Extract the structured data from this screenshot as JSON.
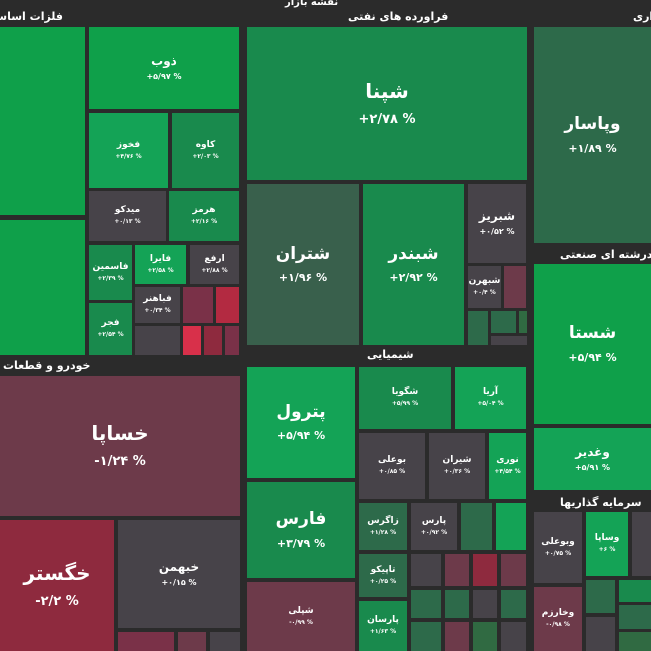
{
  "map_title": "نقشه بازار",
  "sectors": {
    "metals": "فلزات اساسی",
    "refinery": "فراورده های نفتی",
    "partial_right": "اری",
    "multi_industry": "چندرشته ای صنعتی",
    "auto": "خودرو و قطعات",
    "chemical": "شیمیایی",
    "investment": "سرمایه گذاریها"
  },
  "tiles": {
    "zob": {
      "name": "ذوب",
      "pct": "+۵/۹۷ %"
    },
    "fakhoz": {
      "name": "فخوز",
      "pct": "+۴/۷۶ %"
    },
    "kave": {
      "name": "کاوه",
      "pct": "+۲/۰۳ %"
    },
    "midko": {
      "name": "میدکو",
      "pct": "+۰/۱۳ %"
    },
    "hormoz": {
      "name": "هرمز",
      "pct": "+۲/۱۶ %"
    },
    "fasmin": {
      "name": "فاسمین",
      "pct": "+۲/۳۹ %"
    },
    "faira": {
      "name": "فایرا",
      "pct": "+۲/۵۸ %"
    },
    "arfe": {
      "name": "ارفع",
      "pct": "+۲/۸۸ %"
    },
    "fabahonar": {
      "name": "فباهنر",
      "pct": "+۰/۳۴ %"
    },
    "fajr": {
      "name": "فجر",
      "pct": "+۲/۵۴ %"
    },
    "shepna": {
      "name": "شپنا",
      "pct": "+۲/۷۸ %"
    },
    "shetran": {
      "name": "شتران",
      "pct": "+۱/۹۶ %"
    },
    "shebandar": {
      "name": "شبندر",
      "pct": "+۲/۹۲ %"
    },
    "shebriz": {
      "name": "شبریز",
      "pct": "+۰/۵۲ %"
    },
    "shebahran": {
      "name": "شبهرن",
      "pct": "+۰/۴ %"
    },
    "vapasar": {
      "name": "وپاسار",
      "pct": "+۱/۸۹ %"
    },
    "shasta": {
      "name": "شستا",
      "pct": "+۵/۹۴ %"
    },
    "vaghadir": {
      "name": "وغدیر",
      "pct": "+۵/۹۱ %"
    },
    "khsapa": {
      "name": "خساپا",
      "pct": "-۱/۲۴ %"
    },
    "khegostar": {
      "name": "خگستر",
      "pct": "-۲/۲ %"
    },
    "khbahman": {
      "name": "خبهمن",
      "pct": "+۰/۱۵ %"
    },
    "petrol": {
      "name": "پترول",
      "pct": "+۵/۹۴ %"
    },
    "fars": {
      "name": "فارس",
      "pct": "+۳/۷۹ %"
    },
    "sheli": {
      "name": "شپلی",
      "pct": "-۰/۹۹ %"
    },
    "shegooya": {
      "name": "شگویا",
      "pct": "+۵/۹۹ %"
    },
    "arya": {
      "name": "آریا",
      "pct": "+۵/۰۴ %"
    },
    "buali": {
      "name": "بوعلی",
      "pct": "+۰/۸۵ %"
    },
    "shiran": {
      "name": "شیران",
      "pct": "+۰/۳۶ %"
    },
    "nori": {
      "name": "نوری",
      "pct": "+۴/۵۴ %"
    },
    "zagros": {
      "name": "زاگرس",
      "pct": "+۱/۲۸ %"
    },
    "pars": {
      "name": "پارس",
      "pct": "+۰/۹۲ %"
    },
    "tapiko": {
      "name": "تاپیکو",
      "pct": "+۰/۲۵ %"
    },
    "parsan": {
      "name": "پارسان",
      "pct": "+۱/۶۳ %"
    },
    "vabouali": {
      "name": "وبوعلی",
      "pct": "+۰/۷۵ %"
    },
    "vasapa": {
      "name": "وساپا",
      "pct": "+۶ %"
    },
    "vakharazm": {
      "name": "وخارزم",
      "pct": "-۰/۹۸ %"
    }
  }
}
